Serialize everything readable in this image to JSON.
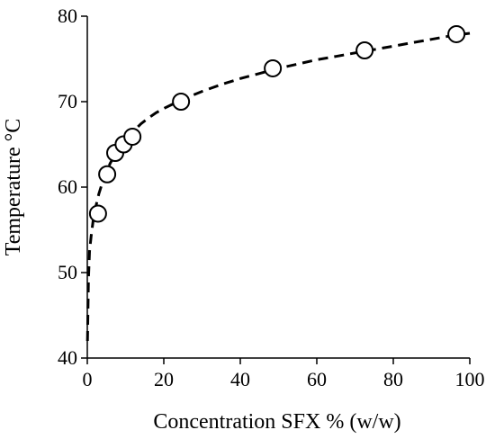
{
  "chart_data": {
    "type": "scatter",
    "title": "",
    "xlabel": "Concentration SFX % (w/w)",
    "ylabel": "Temperature °C",
    "xlim": [
      0,
      100
    ],
    "ylim": [
      40,
      80
    ],
    "x_ticks": [
      0,
      20,
      40,
      60,
      80,
      100
    ],
    "y_ticks": [
      40,
      50,
      60,
      70,
      80
    ],
    "grid": false,
    "legend": "none",
    "series": [
      {
        "marker": "open-circle",
        "x": [
          2.8,
          5.2,
          7.3,
          9.5,
          11.8,
          24.5,
          48.5,
          72.5,
          96.5
        ],
        "y": [
          56.9,
          61.5,
          64.0,
          65.0,
          65.9,
          70.0,
          73.9,
          76.0,
          77.9
        ]
      }
    ],
    "fit_curve": {
      "style": "dashed",
      "x": [
        0.05,
        0.3,
        0.6,
        1,
        1.5,
        2,
        3,
        4,
        5,
        6,
        7,
        8,
        9,
        10,
        12,
        14,
        16,
        18,
        20,
        25,
        30,
        35,
        40,
        45,
        50,
        55,
        60,
        65,
        70,
        75,
        80,
        85,
        90,
        95,
        100
      ],
      "y": [
        42.0,
        49.3,
        52.5,
        54.3,
        56.0,
        57.3,
        59.2,
        60.6,
        61.8,
        62.8,
        63.6,
        64.4,
        65.0,
        65.6,
        66.5,
        67.4,
        68.1,
        68.7,
        69.2,
        70.3,
        71.2,
        72.0,
        72.7,
        73.3,
        73.9,
        74.4,
        74.9,
        75.3,
        75.7,
        76.1,
        76.5,
        76.9,
        77.3,
        77.7,
        78.0
      ]
    }
  },
  "colors": {
    "axis": "#000000",
    "marker_stroke": "#000000",
    "marker_fill": "#ffffff",
    "curve": "#000000"
  }
}
